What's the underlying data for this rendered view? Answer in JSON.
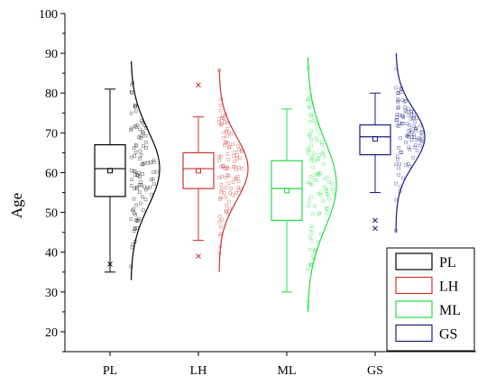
{
  "chart_data": {
    "type": "box",
    "title": "",
    "xlabel": "",
    "ylabel": "Age",
    "ylim": [
      15,
      100
    ],
    "yticks": [
      20,
      30,
      40,
      50,
      60,
      70,
      80,
      90,
      100
    ],
    "categories": [
      "PL",
      "LH",
      "ML",
      "GS"
    ],
    "series": [
      {
        "name": "PL",
        "color": "#000000",
        "q1": 54,
        "median": 61,
        "q3": 67,
        "mean": 60.5,
        "whisker_low": 35,
        "whisker_high": 81,
        "outliers": [
          37
        ],
        "dist_mean": 61,
        "dist_sd": 9.5,
        "dist_min": 33,
        "dist_max": 88
      },
      {
        "name": "LH",
        "color": "#cc3333",
        "q1": 56,
        "median": 61,
        "q3": 65,
        "mean": 60.5,
        "whisker_low": 43,
        "whisker_high": 74,
        "outliers": [
          82,
          39
        ],
        "dist_mean": 61,
        "dist_sd": 8,
        "dist_min": 35,
        "dist_max": 86
      },
      {
        "name": "ML",
        "color": "#22dd44",
        "q1": 48,
        "median": 56,
        "q3": 63,
        "mean": 55.5,
        "whisker_low": 30,
        "whisker_high": 76,
        "outliers": [],
        "dist_mean": 57,
        "dist_sd": 11,
        "dist_min": 25,
        "dist_max": 89
      },
      {
        "name": "GS",
        "color": "#1a1a80",
        "q1": 64.5,
        "median": 69,
        "q3": 72,
        "mean": 68.5,
        "whisker_low": 55,
        "whisker_high": 80,
        "outliers": [
          48,
          46
        ],
        "dist_mean": 69,
        "dist_sd": 7,
        "dist_min": 45,
        "dist_max": 90
      }
    ],
    "legend": {
      "position": "bottom-right",
      "entries": [
        "PL",
        "LH",
        "ML",
        "GS"
      ]
    },
    "grid": false
  }
}
